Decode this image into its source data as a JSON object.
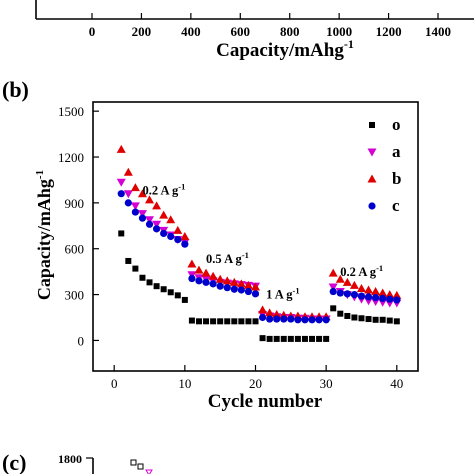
{
  "chart_data": [
    {
      "panel": "top (cropped)",
      "type": "line",
      "xlabel": "Capacity/mAhg",
      "xlabel_sup": "-1",
      "x_ticks": [
        "0",
        "200",
        "400",
        "600",
        "800",
        "1000",
        "1200",
        "1400"
      ],
      "xlim": [
        0,
        1400
      ]
    },
    {
      "panel": "(b)",
      "type": "scatter",
      "xlabel": "Cycle number",
      "ylabel": "Capacity/mAhg",
      "ylabel_sup": "-1",
      "xlim": [
        -3,
        43
      ],
      "ylim": [
        -200,
        1560
      ],
      "x_ticks": [
        0,
        10,
        20,
        30,
        40
      ],
      "y_ticks": [
        0,
        300,
        600,
        900,
        1200,
        1500
      ],
      "legend_position": "top-right",
      "annotations": [
        {
          "text": "0.2 A g",
          "sup": "-1",
          "x": 4,
          "y": 955
        },
        {
          "text": "0.5 A g",
          "sup": "-1",
          "x": 13,
          "y": 505
        },
        {
          "text": "1 A g",
          "sup": "-1",
          "x": 21.5,
          "y": 275
        },
        {
          "text": "0.2 A g",
          "sup": "-1",
          "x": 32,
          "y": 420
        }
      ],
      "x": [
        1,
        2,
        3,
        4,
        5,
        6,
        7,
        8,
        9,
        10,
        11,
        12,
        13,
        14,
        15,
        16,
        17,
        18,
        19,
        20,
        21,
        22,
        23,
        24,
        25,
        26,
        27,
        28,
        29,
        30,
        31,
        32,
        33,
        34,
        35,
        36,
        37,
        38,
        39,
        40
      ],
      "series": [
        {
          "name": "o",
          "marker": "square",
          "color": "#000000",
          "values": [
            700,
            520,
            470,
            410,
            380,
            355,
            335,
            315,
            295,
            265,
            130,
            125,
            125,
            125,
            125,
            125,
            125,
            125,
            125,
            125,
            15,
            10,
            10,
            10,
            10,
            10,
            10,
            10,
            10,
            10,
            210,
            175,
            160,
            150,
            145,
            140,
            135,
            135,
            130,
            125
          ]
        },
        {
          "name": "a",
          "marker": "triangle-down",
          "color": "#d400d4",
          "values": [
            1035,
            960,
            880,
            830,
            790,
            760,
            720,
            690,
            660,
            640,
            430,
            410,
            400,
            390,
            380,
            375,
            370,
            365,
            360,
            355,
            170,
            160,
            155,
            150,
            150,
            145,
            145,
            140,
            140,
            140,
            350,
            320,
            300,
            285,
            270,
            260,
            255,
            250,
            245,
            245
          ]
        },
        {
          "name": "b",
          "marker": "triangle-up",
          "color": "#e00000",
          "values": [
            1250,
            1100,
            1000,
            960,
            920,
            880,
            820,
            790,
            720,
            680,
            500,
            460,
            440,
            420,
            400,
            390,
            380,
            370,
            360,
            350,
            200,
            180,
            170,
            165,
            160,
            160,
            155,
            155,
            155,
            155,
            440,
            400,
            380,
            360,
            340,
            330,
            320,
            310,
            300,
            295
          ]
        },
        {
          "name": "c",
          "marker": "circle",
          "color": "#0000cc",
          "values": [
            960,
            900,
            840,
            800,
            760,
            730,
            700,
            680,
            660,
            630,
            405,
            390,
            380,
            370,
            355,
            345,
            335,
            330,
            320,
            305,
            150,
            140,
            140,
            140,
            140,
            135,
            135,
            135,
            135,
            135,
            320,
            310,
            305,
            300,
            290,
            285,
            280,
            275,
            270,
            265
          ]
        }
      ]
    },
    {
      "panel": "(c) (cropped)",
      "type": "scatter",
      "y_ticks": [
        1800
      ],
      "series": [
        {
          "name": "",
          "marker": "open-square",
          "color": "#000000"
        },
        {
          "name": "",
          "marker": "open-triangle-down",
          "color": "#d400d4"
        }
      ]
    }
  ],
  "labels": {
    "panel_b": "(b)",
    "panel_c": "(c)"
  }
}
